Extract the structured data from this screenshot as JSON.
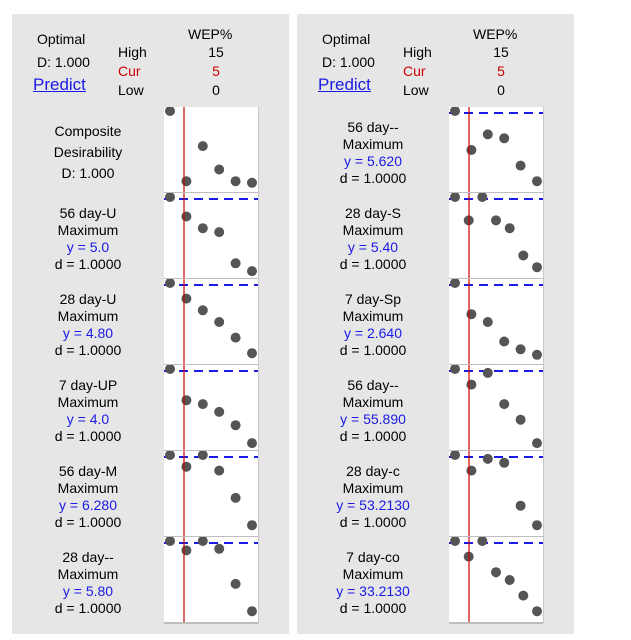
{
  "header": {
    "optimal_label": "Optimal",
    "d_label": "D: 1.000",
    "predict_label": "Predict",
    "factor_name": "WEP%",
    "high_label": "High",
    "cur_label": "Cur",
    "low_label": "Low",
    "high_value": "15",
    "cur_value": "5",
    "low_value": "0"
  },
  "colors": {
    "cur": "#cc0000",
    "y_value": "#1a1ae6",
    "predict_link": "#1a1ae6",
    "target_line": "#1a1ae6"
  },
  "left_rows": [
    {
      "composite": true,
      "l1": "Composite",
      "l2": "Desirability",
      "l3": "D: 1.000",
      "points": [
        0.0,
        0.9,
        0.45,
        0.75,
        0.9,
        0.92
      ]
    },
    {
      "name": "56 day-U",
      "goal": "Maximum",
      "y": "y = 5.0",
      "d": "d = 1.0000",
      "points": [
        0.0,
        0.25,
        0.4,
        0.45,
        0.85,
        0.95
      ]
    },
    {
      "name": "28 day-U",
      "goal": "Maximum",
      "y": "y = 4.80",
      "d": "d = 1.0000",
      "points": [
        0.0,
        0.2,
        0.35,
        0.5,
        0.7,
        0.9
      ]
    },
    {
      "name": "7 day-UP",
      "goal": "Maximum",
      "y": "y = 4.0",
      "d": "d = 1.0000",
      "points": [
        0.0,
        0.4,
        0.45,
        0.55,
        0.72,
        0.95
      ]
    },
    {
      "name": "56 day-M",
      "goal": "Maximum",
      "y": "y = 6.280",
      "d": "d = 1.0000",
      "points": [
        0.0,
        0.15,
        0.0,
        0.2,
        0.55,
        0.9
      ]
    },
    {
      "name": "28 day--",
      "goal": "Maximum",
      "y": "y = 5.80",
      "d": "d = 1.0000",
      "points": [
        0.0,
        0.12,
        0.0,
        0.1,
        0.55,
        0.9
      ]
    }
  ],
  "right_rows": [
    {
      "name": "56 day--",
      "goal": "Maximum",
      "y": "y = 5.620",
      "d": "d = 1.0000",
      "points": [
        0.0,
        0.5,
        0.3,
        0.35,
        0.7,
        0.9
      ]
    },
    {
      "name": "28 day-S",
      "goal": "Maximum",
      "y": "y = 5.40",
      "d": "d = 1.0000",
      "points": [
        0.0,
        0.3,
        0.0,
        0.3,
        0.4,
        0.75,
        0.9
      ]
    },
    {
      "name": "7 day-Sp",
      "goal": "Maximum",
      "y": "y = 2.640",
      "d": "d = 1.0000",
      "points": [
        0.0,
        0.4,
        0.5,
        0.75,
        0.85,
        0.92
      ]
    },
    {
      "name": "56 day--",
      "goal": "Maximum",
      "y": "y = 55.890",
      "d": "d = 1.0000",
      "points": [
        0.0,
        0.2,
        0.05,
        0.45,
        0.65,
        0.95
      ]
    },
    {
      "name": "28 day-c",
      "goal": "Maximum",
      "y": "y = 53.2130",
      "d": "d = 1.0000",
      "points": [
        0.0,
        0.2,
        0.05,
        0.1,
        0.65,
        0.9
      ]
    },
    {
      "name": "7 day-co",
      "goal": "Maximum",
      "y": "y = 33.2130",
      "d": "d = 1.0000",
      "points": [
        0.0,
        0.2,
        0.0,
        0.4,
        0.5,
        0.7,
        0.9
      ]
    }
  ]
}
